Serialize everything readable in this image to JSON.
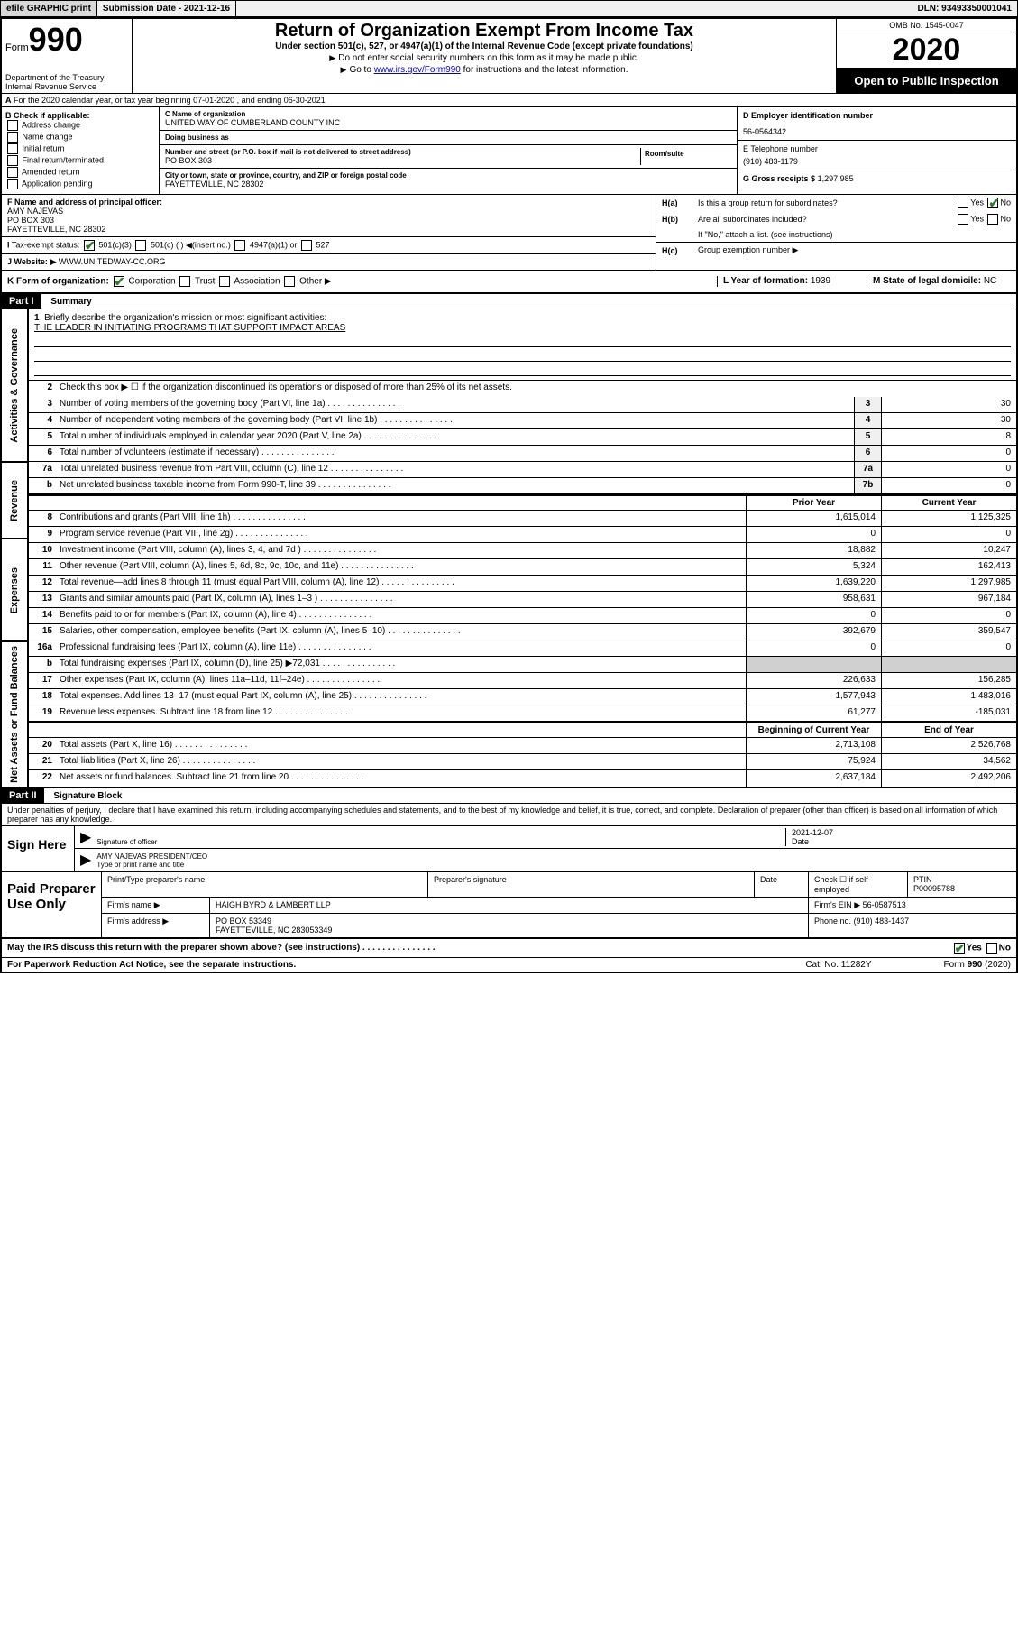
{
  "topbar": {
    "efile": "efile GRAPHIC print",
    "submission": "Submission Date - 2021-12-16",
    "dln": "DLN: 93493350001041"
  },
  "header": {
    "form_prefix": "Form",
    "form_num": "990",
    "dept": "Department of the Treasury\nInternal Revenue Service",
    "title": "Return of Organization Exempt From Income Tax",
    "subtitle": "Under section 501(c), 527, or 4947(a)(1) of the Internal Revenue Code (except private foundations)",
    "note1": "Do not enter social security numbers on this form as it may be made public.",
    "note2_pre": "Go to ",
    "note2_link": "www.irs.gov/Form990",
    "note2_post": " for instructions and the latest information.",
    "omb": "OMB No. 1545-0047",
    "year": "2020",
    "open": "Open to Public Inspection"
  },
  "row_a": "For the 2020 calendar year, or tax year beginning 07-01-2020   , and ending 06-30-2021",
  "box_b": {
    "title": "B Check if applicable:",
    "opts": [
      "Address change",
      "Name change",
      "Initial return",
      "Final return/terminated",
      "Amended return",
      "Application pending"
    ]
  },
  "box_c": {
    "name_lab": "C Name of organization",
    "name": "UNITED WAY OF CUMBERLAND COUNTY INC",
    "dba_lab": "Doing business as",
    "dba": "",
    "addr_lab": "Number and street (or P.O. box if mail is not delivered to street address)",
    "addr": "PO BOX 303",
    "suite_lab": "Room/suite",
    "city_lab": "City or town, state or province, country, and ZIP or foreign postal code",
    "city": "FAYETTEVILLE, NC  28302"
  },
  "box_d": {
    "lab": "D Employer identification number",
    "val": "56-0564342"
  },
  "box_e": {
    "lab": "E Telephone number",
    "val": "(910) 483-1179"
  },
  "box_g": {
    "lab": "G Gross receipts $",
    "val": "1,297,985"
  },
  "box_f": {
    "lab": "F  Name and address of principal officer:",
    "name": "AMY NAJEVAS",
    "addr1": "PO BOX 303",
    "addr2": "FAYETTEVILLE, NC  28302"
  },
  "box_h": {
    "ha": "Is this a group return for subordinates?",
    "hb": "Are all subordinates included?",
    "hb_note": "If \"No,\" attach a list. (see instructions)",
    "hc": "Group exemption number ▶"
  },
  "box_i": {
    "lab": "Tax-exempt status:",
    "opts": [
      "501(c)(3)",
      "501(c) (  ) ◀(insert no.)",
      "4947(a)(1) or",
      "527"
    ]
  },
  "box_j": {
    "lab": "Website: ▶",
    "val": "WWW.UNITEDWAY-CC.ORG"
  },
  "box_k": {
    "lab": "K Form of organization:",
    "opts": [
      "Corporation",
      "Trust",
      "Association",
      "Other ▶"
    ]
  },
  "box_l": {
    "lab": "L Year of formation:",
    "val": "1939"
  },
  "box_m": {
    "lab": "M State of legal domicile:",
    "val": "NC"
  },
  "part1": {
    "header": "Part I",
    "title": "Summary",
    "sections": {
      "gov": "Activities & Governance",
      "rev": "Revenue",
      "exp": "Expenses",
      "net": "Net Assets or Fund Balances"
    },
    "l1": "Briefly describe the organization's mission or most significant activities:",
    "l1_val": "THE LEADER IN INITIATING PROGRAMS THAT SUPPORT IMPACT AREAS",
    "l2": "Check this box ▶ ☐  if the organization discontinued its operations or disposed of more than 25% of its net assets.",
    "lines_single": [
      {
        "n": "3",
        "d": "Number of voting members of the governing body (Part VI, line 1a)",
        "r": "3",
        "v": "30"
      },
      {
        "n": "4",
        "d": "Number of independent voting members of the governing body (Part VI, line 1b)",
        "r": "4",
        "v": "30"
      },
      {
        "n": "5",
        "d": "Total number of individuals employed in calendar year 2020 (Part V, line 2a)",
        "r": "5",
        "v": "8"
      },
      {
        "n": "6",
        "d": "Total number of volunteers (estimate if necessary)",
        "r": "6",
        "v": "0"
      },
      {
        "n": "7a",
        "d": "Total unrelated business revenue from Part VIII, column (C), line 12",
        "r": "7a",
        "v": "0"
      },
      {
        "n": "b",
        "d": "Net unrelated business taxable income from Form 990-T, line 39",
        "r": "7b",
        "v": "0"
      }
    ],
    "col_hdr": {
      "prior": "Prior Year",
      "current": "Current Year"
    },
    "lines_double": [
      {
        "n": "8",
        "d": "Contributions and grants (Part VIII, line 1h)",
        "p": "1,615,014",
        "c": "1,125,325"
      },
      {
        "n": "9",
        "d": "Program service revenue (Part VIII, line 2g)",
        "p": "0",
        "c": "0"
      },
      {
        "n": "10",
        "d": "Investment income (Part VIII, column (A), lines 3, 4, and 7d )",
        "p": "18,882",
        "c": "10,247"
      },
      {
        "n": "11",
        "d": "Other revenue (Part VIII, column (A), lines 5, 6d, 8c, 9c, 10c, and 11e)",
        "p": "5,324",
        "c": "162,413"
      },
      {
        "n": "12",
        "d": "Total revenue—add lines 8 through 11 (must equal Part VIII, column (A), line 12)",
        "p": "1,639,220",
        "c": "1,297,985"
      },
      {
        "n": "13",
        "d": "Grants and similar amounts paid (Part IX, column (A), lines 1–3 )",
        "p": "958,631",
        "c": "967,184"
      },
      {
        "n": "14",
        "d": "Benefits paid to or for members (Part IX, column (A), line 4)",
        "p": "0",
        "c": "0"
      },
      {
        "n": "15",
        "d": "Salaries, other compensation, employee benefits (Part IX, column (A), lines 5–10)",
        "p": "392,679",
        "c": "359,547"
      },
      {
        "n": "16a",
        "d": "Professional fundraising fees (Part IX, column (A), line 11e)",
        "p": "0",
        "c": "0"
      },
      {
        "n": "b",
        "d": "Total fundraising expenses (Part IX, column (D), line 25) ▶72,031",
        "p": "",
        "c": "",
        "shade": true
      },
      {
        "n": "17",
        "d": "Other expenses (Part IX, column (A), lines 11a–11d, 11f–24e)",
        "p": "226,633",
        "c": "156,285"
      },
      {
        "n": "18",
        "d": "Total expenses. Add lines 13–17 (must equal Part IX, column (A), line 25)",
        "p": "1,577,943",
        "c": "1,483,016"
      },
      {
        "n": "19",
        "d": "Revenue less expenses. Subtract line 18 from line 12",
        "p": "61,277",
        "c": "-185,031"
      }
    ],
    "col_hdr2": {
      "begin": "Beginning of Current Year",
      "end": "End of Year"
    },
    "lines_net": [
      {
        "n": "20",
        "d": "Total assets (Part X, line 16)",
        "p": "2,713,108",
        "c": "2,526,768"
      },
      {
        "n": "21",
        "d": "Total liabilities (Part X, line 26)",
        "p": "75,924",
        "c": "34,562"
      },
      {
        "n": "22",
        "d": "Net assets or fund balances. Subtract line 21 from line 20",
        "p": "2,637,184",
        "c": "2,492,206"
      }
    ]
  },
  "part2": {
    "header": "Part II",
    "title": "Signature Block",
    "decl": "Under penalties of perjury, I declare that I have examined this return, including accompanying schedules and statements, and to the best of my knowledge and belief, it is true, correct, and complete. Declaration of preparer (other than officer) is based on all information of which preparer has any knowledge.",
    "sign_here": "Sign Here",
    "sig_of": "Signature of officer",
    "sig_date": "2021-12-07",
    "date_lab": "Date",
    "typed": "AMY NAJEVAS PRESIDENT/CEO",
    "typed_lab": "Type or print name and title"
  },
  "prep": {
    "label": "Paid Preparer Use Only",
    "h1": "Print/Type preparer's name",
    "h2": "Preparer's signature",
    "h3": "Date",
    "h4_pre": "Check ☐ if self-employed",
    "h5": "PTIN",
    "ptin": "P00095788",
    "firm_lab": "Firm's name    ▶",
    "firm": "HAIGH BYRD & LAMBERT LLP",
    "ein_lab": "Firm's EIN ▶",
    "ein": "56-0587513",
    "addr_lab": "Firm's address ▶",
    "addr1": "PO BOX 53349",
    "addr2": "FAYETTEVILLE, NC  283053349",
    "phone_lab": "Phone no.",
    "phone": "(910) 483-1437"
  },
  "footer": {
    "discuss": "May the IRS discuss this return with the preparer shown above? (see instructions)",
    "paperwork": "For Paperwork Reduction Act Notice, see the separate instructions.",
    "cat": "Cat. No. 11282Y",
    "form": "Form 990 (2020)"
  }
}
